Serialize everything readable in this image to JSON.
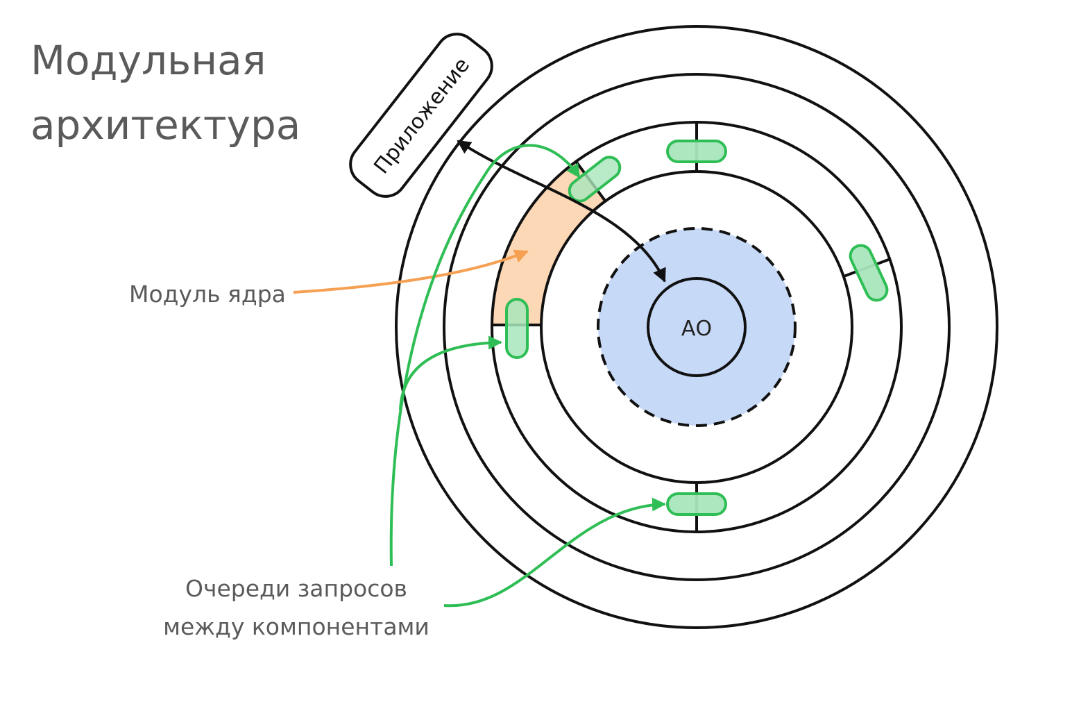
{
  "title": {
    "line1": "Модульная",
    "line2": "архитектура"
  },
  "labels": {
    "center": "АО",
    "app": "Приложение",
    "core_module": "Модуль ядра",
    "queues_line1": "Очереди запросов",
    "queues_line2": "между компонентами"
  },
  "colors": {
    "ring_stroke": "#111111",
    "core_fill": "#c6d9f7",
    "module_fill": "#fdd8b6",
    "queue_fill": "#a8e6bc",
    "queue_stroke": "#2fbe55",
    "green_arrow": "#2fbe55",
    "orange_arrow": "#f5a052",
    "text": "#5a5a5a"
  }
}
